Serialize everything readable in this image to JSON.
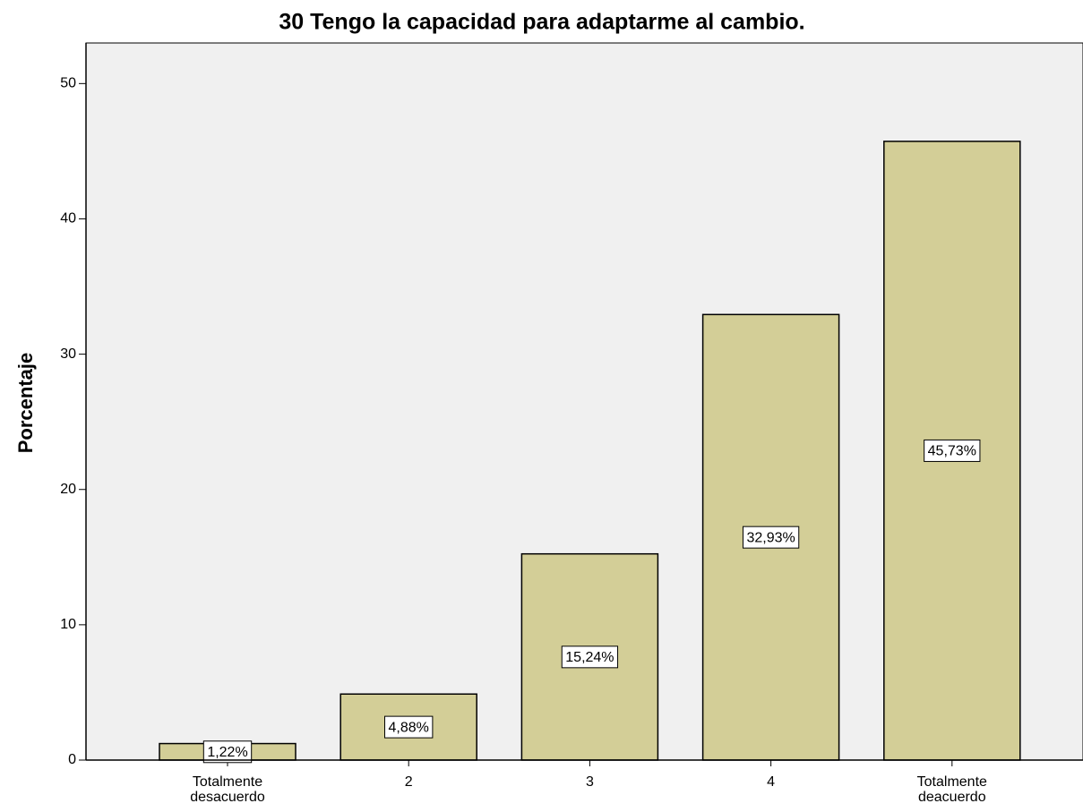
{
  "chart_data": {
    "type": "bar",
    "title": "30 Tengo la capacidad para adaptarme al cambio.",
    "y_label": "Porcentaje",
    "categories": [
      "Totalmente desacuerdo",
      "2",
      "3",
      "4",
      "Totalmente deacuerdo"
    ],
    "values": [
      1.22,
      4.88,
      15.24,
      32.93,
      45.73
    ],
    "value_labels": [
      "1,22%",
      "4,88%",
      "15,24%",
      "32,93%",
      "45,73%"
    ],
    "color": "#d3ce97",
    "ylim": [
      0,
      53
    ],
    "yticks": [
      0,
      10,
      20,
      30,
      40,
      50
    ],
    "grid": false
  }
}
